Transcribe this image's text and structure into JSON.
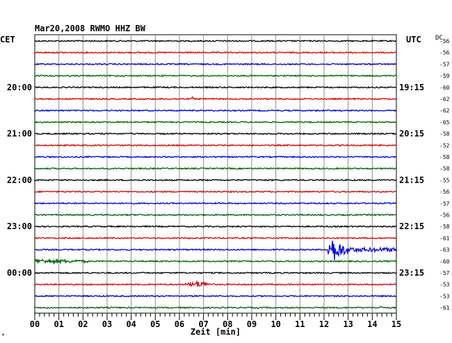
{
  "chart_data": {
    "type": "line",
    "title": "Mar20,2008  RWMO HHZ BW",
    "left_timezone": "CET",
    "right_timezone": "UTC",
    "dc_header": "DC",
    "xlabel": "Zeit [min]",
    "xlim": [
      0,
      15
    ],
    "x_ticks": [
      "00",
      "01",
      "02",
      "03",
      "04",
      "05",
      "06",
      "07",
      "08",
      "09",
      "10",
      "11",
      "12",
      "13",
      "14",
      "15"
    ],
    "left_hour_labels": [
      "20:00",
      "21:00",
      "22:00",
      "23:00",
      "00:00"
    ],
    "right_hour_labels": [
      "19:15",
      "20:15",
      "21:15",
      "22:15",
      "23:15"
    ],
    "trace_colors": [
      "#000000",
      "#e00000",
      "#0000e0",
      "#006400"
    ],
    "dc_values": [
      "-56",
      "-56",
      "-57",
      "-59",
      "-60",
      "-62",
      "-62",
      "-65",
      "-58",
      "-52",
      "-58",
      "-58",
      "-55",
      "-56",
      "-57",
      "-56",
      "-58",
      "-61",
      "-63",
      "-60",
      "-57",
      "-53",
      "-53",
      "-61"
    ],
    "events": [
      {
        "trace": 5,
        "start_min": 6.4,
        "end_min": 6.7,
        "amplitude": "small"
      },
      {
        "trace": 18,
        "start_min": 12.1,
        "end_min": 15.0,
        "amplitude": "large"
      },
      {
        "trace": 19,
        "start_min": 0.0,
        "end_min": 2.2,
        "amplitude": "noise"
      },
      {
        "trace": 21,
        "start_min": 6.0,
        "end_min": 7.6,
        "amplitude": "medium"
      },
      {
        "trace": 23,
        "start_min": 14.2,
        "end_min": 14.5,
        "amplitude": "small"
      }
    ]
  },
  "footer_mark": "*"
}
